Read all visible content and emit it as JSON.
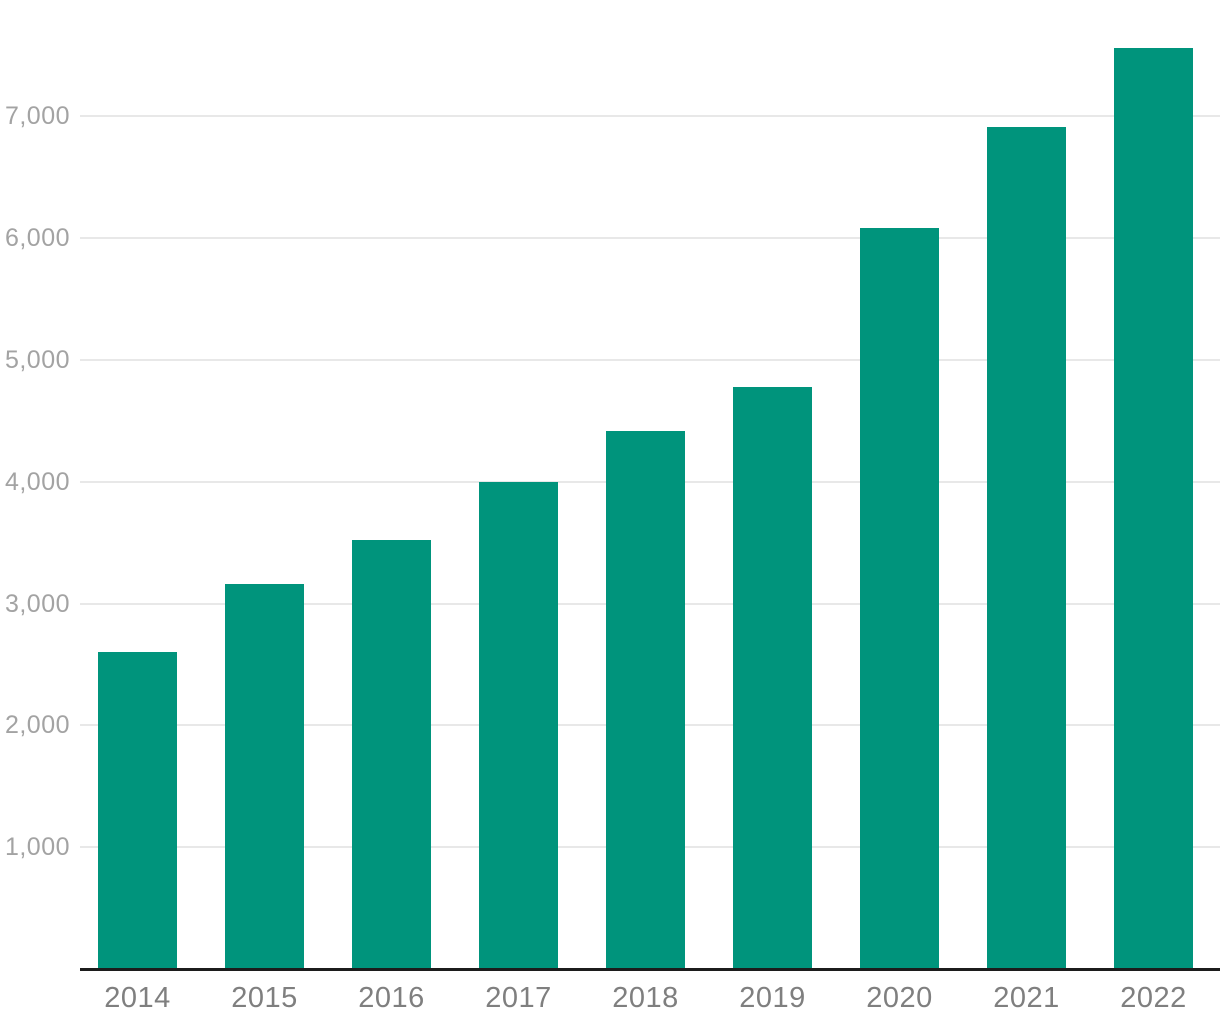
{
  "chart_data": {
    "type": "bar",
    "title": "",
    "xlabel": "",
    "ylabel": "",
    "categories": [
      "2014",
      "2015",
      "2016",
      "2017",
      "2018",
      "2019",
      "2020",
      "2021",
      "2022"
    ],
    "values": [
      2600,
      3160,
      3520,
      4000,
      4420,
      4780,
      6080,
      6910,
      7560
    ],
    "ylim": [
      0,
      7954
    ],
    "yticks": [
      1000,
      2000,
      3000,
      4000,
      5000,
      6000,
      7000
    ],
    "ytick_labels": [
      "1,000",
      "2,000",
      "3,000",
      "4,000",
      "5,000",
      "6,000",
      "7,000"
    ],
    "grid": "horizontal",
    "legend": "none",
    "colors": {
      "bar": "#00947c",
      "gridline": "#e8e8e8",
      "axis_line": "#1c1c1c",
      "x_tick_label": "#7f7f7f",
      "y_tick_label": "#a3a3a3",
      "background": "#ffffff"
    }
  }
}
